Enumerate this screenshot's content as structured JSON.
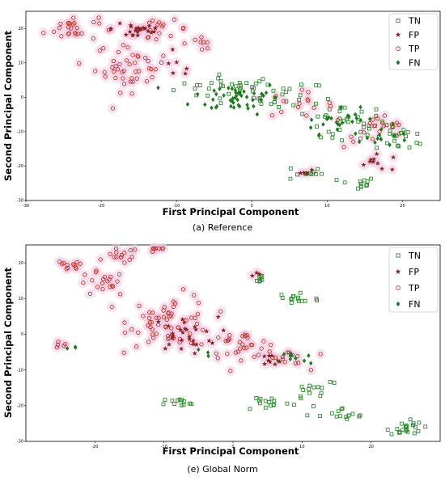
{
  "colors": {
    "tn": "#2e8b2e",
    "fp": "#8b2323",
    "tp": "#c0392b",
    "fn": "#1f7a1f",
    "halo": "#f4c6df"
  },
  "chart_data": [
    {
      "type": "scatter",
      "caption": "(a) Reference",
      "xlabel": "First Principal Component",
      "ylabel": "Second Principal Component",
      "xlim": [
        -30,
        25
      ],
      "ylim": [
        -30,
        25
      ],
      "xticks": [
        "-30",
        "-20",
        "-10",
        "0",
        "10",
        "20"
      ],
      "yticks": [
        "20",
        "10",
        "0",
        "-10",
        "-20",
        "-30"
      ],
      "legend": {
        "position": "top-right",
        "entries": [
          "TN",
          "FP",
          "TP",
          "FN"
        ]
      },
      "clusters": [
        {
          "label": "TN",
          "center": [
            -3,
            3
          ],
          "spread": [
            6,
            3
          ],
          "count": 30
        },
        {
          "label": "TN",
          "center": [
            5,
            0
          ],
          "spread": [
            4,
            4
          ],
          "count": 25
        },
        {
          "label": "TN",
          "center": [
            12,
            -8
          ],
          "spread": [
            5,
            5
          ],
          "count": 35
        },
        {
          "label": "TN",
          "center": [
            20,
            -12
          ],
          "spread": [
            3,
            3
          ],
          "count": 20
        },
        {
          "label": "TN",
          "center": [
            7,
            -22
          ],
          "spread": [
            2,
            2
          ],
          "count": 12
        },
        {
          "label": "TN",
          "center": [
            14,
            -25
          ],
          "spread": [
            2,
            1.5
          ],
          "count": 12
        },
        {
          "label": "FN",
          "center": [
            -2,
            0
          ],
          "spread": [
            5,
            4
          ],
          "count": 45
        },
        {
          "label": "FN",
          "center": [
            12,
            -7
          ],
          "spread": [
            5,
            3
          ],
          "count": 25
        },
        {
          "label": "FN",
          "center": [
            17,
            -12
          ],
          "spread": [
            3,
            2
          ],
          "count": 10
        },
        {
          "label": "TP",
          "center": [
            -24,
            20
          ],
          "spread": [
            3,
            3
          ],
          "count": 25
        },
        {
          "label": "TP",
          "center": [
            -16,
            9
          ],
          "spread": [
            4,
            6
          ],
          "count": 45
        },
        {
          "label": "TP",
          "center": [
            -12,
            20
          ],
          "spread": [
            3,
            2
          ],
          "count": 15
        },
        {
          "label": "TP",
          "center": [
            -7,
            16
          ],
          "spread": [
            2,
            2
          ],
          "count": 8
        },
        {
          "label": "TP",
          "center": [
            6,
            -2
          ],
          "spread": [
            4,
            3
          ],
          "count": 15
        },
        {
          "label": "TP",
          "center": [
            17,
            -10
          ],
          "spread": [
            4,
            4
          ],
          "count": 18
        },
        {
          "label": "FP",
          "center": [
            -15,
            20
          ],
          "spread": [
            3,
            3
          ],
          "count": 25
        },
        {
          "label": "FP",
          "center": [
            -10,
            8
          ],
          "spread": [
            2,
            3
          ],
          "count": 6
        },
        {
          "label": "FP",
          "center": [
            17,
            -19
          ],
          "spread": [
            3,
            2
          ],
          "count": 10
        },
        {
          "label": "FP",
          "center": [
            7,
            -22
          ],
          "spread": [
            1,
            1
          ],
          "count": 4
        }
      ]
    },
    {
      "type": "scatter",
      "caption": "(e) Global Norm",
      "xlabel": "First Principal Component",
      "ylabel": "Second Principal Component",
      "xlim": [
        -30,
        30
      ],
      "ylim": [
        -30,
        25
      ],
      "xticks": [
        "-20",
        "-10",
        "0",
        "10",
        "20"
      ],
      "yticks": [
        "20",
        "10",
        "0",
        "-10",
        "-20",
        "-30"
      ],
      "legend": {
        "position": "top-right",
        "entries": [
          "TN",
          "FP",
          "TP",
          "FN"
        ]
      },
      "clusters": [
        {
          "label": "TP",
          "center": [
            -24,
            19
          ],
          "spread": [
            2,
            1.5
          ],
          "count": 12
        },
        {
          "label": "TP",
          "center": [
            -19,
            14
          ],
          "spread": [
            3,
            3
          ],
          "count": 20
        },
        {
          "label": "TP",
          "center": [
            -16,
            22
          ],
          "spread": [
            2,
            2
          ],
          "count": 15
        },
        {
          "label": "TP",
          "center": [
            -11,
            24
          ],
          "spread": [
            1.5,
            1.5
          ],
          "count": 8
        },
        {
          "label": "TP",
          "center": [
            -9,
            4
          ],
          "spread": [
            5,
            6
          ],
          "count": 60
        },
        {
          "label": "TP",
          "center": [
            1,
            -3
          ],
          "spread": [
            4,
            3
          ],
          "count": 30
        },
        {
          "label": "TP",
          "center": [
            7,
            -7
          ],
          "spread": [
            3,
            3
          ],
          "count": 15
        },
        {
          "label": "TP",
          "center": [
            -25,
            -3
          ],
          "spread": [
            1,
            1
          ],
          "count": 5
        },
        {
          "label": "FP",
          "center": [
            -7,
            0
          ],
          "spread": [
            4,
            4
          ],
          "count": 28
        },
        {
          "label": "FP",
          "center": [
            3,
            17
          ],
          "spread": [
            1,
            1
          ],
          "count": 3
        },
        {
          "label": "FP",
          "center": [
            5,
            -8
          ],
          "spread": [
            2,
            2
          ],
          "count": 8
        },
        {
          "label": "FN",
          "center": [
            -23,
            -4
          ],
          "spread": [
            0.8,
            0.8
          ],
          "count": 3
        },
        {
          "label": "FN",
          "center": [
            9,
            -7
          ],
          "spread": [
            2,
            2
          ],
          "count": 10
        },
        {
          "label": "FN",
          "center": [
            -4,
            -5
          ],
          "spread": [
            1,
            1
          ],
          "count": 3
        },
        {
          "label": "TN",
          "center": [
            4,
            15
          ],
          "spread": [
            1,
            2
          ],
          "count": 8
        },
        {
          "label": "TN",
          "center": [
            9,
            10
          ],
          "spread": [
            3,
            2
          ],
          "count": 15
        },
        {
          "label": "TN",
          "center": [
            -7,
            -19
          ],
          "spread": [
            3,
            1
          ],
          "count": 12
        },
        {
          "label": "TN",
          "center": [
            5,
            -19
          ],
          "spread": [
            3,
            2
          ],
          "count": 15
        },
        {
          "label": "TN",
          "center": [
            12,
            -15
          ],
          "spread": [
            3,
            3
          ],
          "count": 15
        },
        {
          "label": "TN",
          "center": [
            16,
            -23
          ],
          "spread": [
            3,
            2
          ],
          "count": 15
        },
        {
          "label": "TN",
          "center": [
            25,
            -26
          ],
          "spread": [
            2,
            2
          ],
          "count": 22
        }
      ]
    }
  ]
}
